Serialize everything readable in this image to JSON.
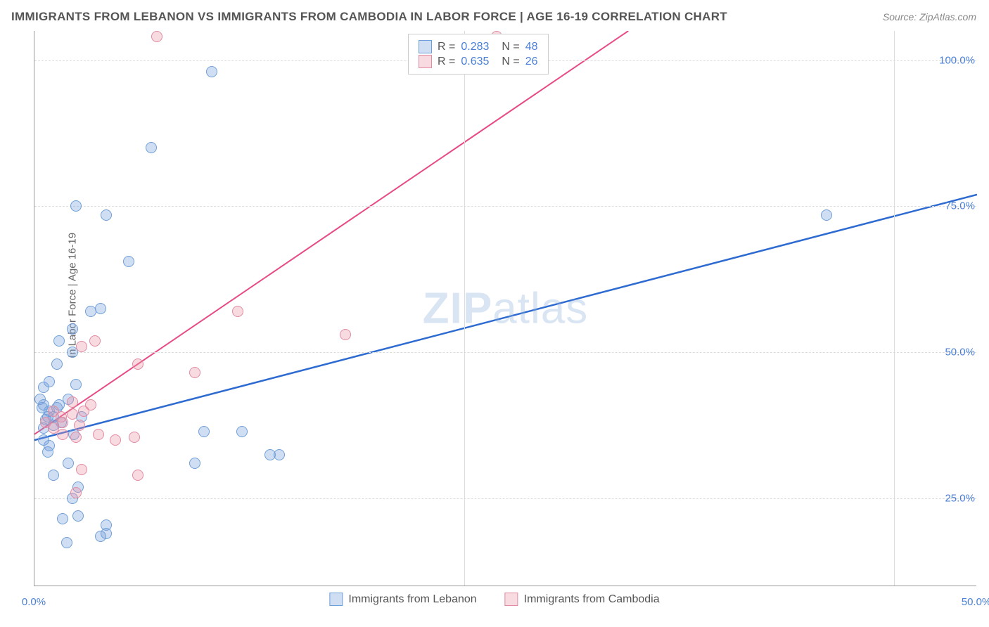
{
  "title": "IMMIGRANTS FROM LEBANON VS IMMIGRANTS FROM CAMBODIA IN LABOR FORCE | AGE 16-19 CORRELATION CHART",
  "source": "Source: ZipAtlas.com",
  "y_axis_label": "In Labor Force | Age 16-19",
  "watermark_part1": "ZIP",
  "watermark_part2": "atlas",
  "chart": {
    "type": "scatter",
    "background_color": "#ffffff",
    "grid_color": "#dcdcdc",
    "axis_color": "#999999",
    "xlim": [
      0,
      50
    ],
    "ylim": [
      10,
      105
    ],
    "x_ticks": [
      {
        "value": 0,
        "label": "0.0%"
      },
      {
        "value": 50,
        "label": "50.0%"
      }
    ],
    "y_ticks": [
      {
        "value": 25,
        "label": "25.0%"
      },
      {
        "value": 50,
        "label": "50.0%"
      },
      {
        "value": 75,
        "label": "75.0%"
      },
      {
        "value": 100,
        "label": "100.0%"
      }
    ],
    "gridlines_h": [
      25,
      50,
      75,
      100
    ],
    "gridlines_v": [
      22.8,
      45.6
    ],
    "series": [
      {
        "name": "Immigrants from Lebanon",
        "color_fill": "rgba(120,160,220,0.35)",
        "color_stroke": "#6f9fd8",
        "trend_color": "#2d6bd1",
        "trend_width": 2.5,
        "R": "0.283",
        "N": "48",
        "trend_line": {
          "x1": 0,
          "y1": 35,
          "x2": 50,
          "y2": 77
        },
        "points": [
          {
            "x": 0.3,
            "y": 42
          },
          {
            "x": 0.5,
            "y": 44
          },
          {
            "x": 0.4,
            "y": 40.5
          },
          {
            "x": 0.5,
            "y": 41
          },
          {
            "x": 0.6,
            "y": 38.5
          },
          {
            "x": 0.8,
            "y": 40
          },
          {
            "x": 1.0,
            "y": 39
          },
          {
            "x": 1.2,
            "y": 40.5
          },
          {
            "x": 0.8,
            "y": 34
          },
          {
            "x": 0.5,
            "y": 35
          },
          {
            "x": 2.2,
            "y": 75
          },
          {
            "x": 3.8,
            "y": 73.5
          },
          {
            "x": 6.2,
            "y": 85
          },
          {
            "x": 9.4,
            "y": 98
          },
          {
            "x": 5.0,
            "y": 65.5
          },
          {
            "x": 1.3,
            "y": 52
          },
          {
            "x": 2.0,
            "y": 54
          },
          {
            "x": 3.0,
            "y": 57
          },
          {
            "x": 3.5,
            "y": 57.5
          },
          {
            "x": 1.2,
            "y": 48
          },
          {
            "x": 2.0,
            "y": 50
          },
          {
            "x": 0.8,
            "y": 45
          },
          {
            "x": 1.3,
            "y": 41
          },
          {
            "x": 1.8,
            "y": 42
          },
          {
            "x": 2.5,
            "y": 39
          },
          {
            "x": 2.1,
            "y": 36
          },
          {
            "x": 42.0,
            "y": 73.5
          },
          {
            "x": 9.0,
            "y": 36.5
          },
          {
            "x": 11.0,
            "y": 36.5
          },
          {
            "x": 8.5,
            "y": 31
          },
          {
            "x": 12.5,
            "y": 32.5
          },
          {
            "x": 13.0,
            "y": 32.5
          },
          {
            "x": 1.0,
            "y": 29
          },
          {
            "x": 0.7,
            "y": 33
          },
          {
            "x": 1.8,
            "y": 31
          },
          {
            "x": 2.0,
            "y": 25
          },
          {
            "x": 2.3,
            "y": 27
          },
          {
            "x": 1.5,
            "y": 21.5
          },
          {
            "x": 2.3,
            "y": 22
          },
          {
            "x": 1.7,
            "y": 17.5
          },
          {
            "x": 3.5,
            "y": 18.5
          },
          {
            "x": 3.8,
            "y": 19
          },
          {
            "x": 3.8,
            "y": 20.5
          },
          {
            "x": 0.5,
            "y": 37
          },
          {
            "x": 0.7,
            "y": 39
          },
          {
            "x": 1.0,
            "y": 37.5
          },
          {
            "x": 1.4,
            "y": 38
          },
          {
            "x": 2.2,
            "y": 44.5
          }
        ]
      },
      {
        "name": "Immigrants from Cambodia",
        "color_fill": "rgba(235,150,170,0.35)",
        "color_stroke": "#e28ba2",
        "trend_color": "#e74b85",
        "trend_width": 2.0,
        "R": "0.635",
        "N": "26",
        "trend_line": {
          "x1": 0,
          "y1": 36,
          "x2": 31.5,
          "y2": 105
        },
        "points": [
          {
            "x": 0.6,
            "y": 38
          },
          {
            "x": 1.0,
            "y": 40
          },
          {
            "x": 1.4,
            "y": 39
          },
          {
            "x": 1.0,
            "y": 37
          },
          {
            "x": 1.5,
            "y": 36
          },
          {
            "x": 2.0,
            "y": 39.5
          },
          {
            "x": 2.2,
            "y": 35.5
          },
          {
            "x": 2.4,
            "y": 37.5
          },
          {
            "x": 2.6,
            "y": 40
          },
          {
            "x": 3.0,
            "y": 41
          },
          {
            "x": 3.4,
            "y": 36
          },
          {
            "x": 4.3,
            "y": 35
          },
          {
            "x": 2.5,
            "y": 51
          },
          {
            "x": 3.2,
            "y": 52
          },
          {
            "x": 2.0,
            "y": 41.5
          },
          {
            "x": 5.5,
            "y": 48
          },
          {
            "x": 6.5,
            "y": 104
          },
          {
            "x": 8.5,
            "y": 46.5
          },
          {
            "x": 10.8,
            "y": 57
          },
          {
            "x": 16.5,
            "y": 53
          },
          {
            "x": 24.5,
            "y": 104
          },
          {
            "x": 2.2,
            "y": 26
          },
          {
            "x": 2.5,
            "y": 30
          },
          {
            "x": 5.3,
            "y": 35.5
          },
          {
            "x": 5.5,
            "y": 29
          },
          {
            "x": 1.5,
            "y": 38
          }
        ]
      }
    ]
  },
  "legend_top": {
    "r_label": "R =",
    "n_label": "N ="
  },
  "legend_bottom": [
    {
      "label": "Immigrants from Lebanon"
    },
    {
      "label": "Immigrants from Cambodia"
    }
  ]
}
